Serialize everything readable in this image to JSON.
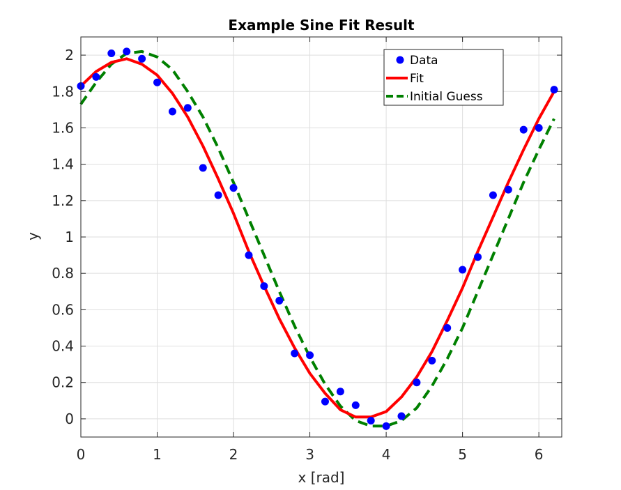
{
  "chart_data": {
    "type": "line",
    "title": "Example Sine Fit Result",
    "xlabel": "x [rad]",
    "ylabel": "y",
    "xlim": [
      0,
      6.3
    ],
    "ylim": [
      -0.1,
      2.1
    ],
    "xticks": [
      "0",
      "1",
      "2",
      "3",
      "4",
      "5",
      "6"
    ],
    "yticks": [
      "0",
      "0.2",
      "0.4",
      "0.6",
      "0.8",
      "1",
      "1.2",
      "1.4",
      "1.6",
      "1.8",
      "2"
    ],
    "grid": true,
    "legend_position": "top-right",
    "series": [
      {
        "name": "Data",
        "style": "scatter",
        "color": "#0000ff",
        "x": [
          0,
          0.2,
          0.4,
          0.6,
          0.8,
          1.0,
          1.2,
          1.4,
          1.6,
          1.8,
          2.0,
          2.2,
          2.4,
          2.6,
          2.8,
          3.0,
          3.2,
          3.4,
          3.6,
          3.8,
          4.0,
          4.2,
          4.4,
          4.6,
          4.8,
          5.0,
          5.2,
          5.4,
          5.6,
          5.8,
          6.0,
          6.2
        ],
        "y": [
          1.83,
          1.88,
          2.01,
          2.02,
          1.98,
          1.85,
          1.69,
          1.71,
          1.38,
          1.23,
          1.27,
          0.9,
          0.73,
          0.65,
          0.36,
          0.35,
          0.095,
          0.15,
          0.075,
          -0.01,
          -0.04,
          0.015,
          0.2,
          0.32,
          0.5,
          0.82,
          0.89,
          1.23,
          1.26,
          1.59,
          1.6,
          1.81
        ]
      },
      {
        "name": "Fit",
        "style": "solid",
        "color": "#ff0000",
        "x": [
          0,
          0.2,
          0.4,
          0.6,
          0.8,
          1.0,
          1.2,
          1.4,
          1.6,
          1.8,
          2.0,
          2.2,
          2.4,
          2.6,
          2.8,
          3.0,
          3.2,
          3.4,
          3.6,
          3.8,
          4.0,
          4.2,
          4.4,
          4.6,
          4.8,
          5.0,
          5.2,
          5.4,
          5.6,
          5.8,
          6.0,
          6.2
        ],
        "y": [
          1.83,
          1.91,
          1.96,
          1.98,
          1.95,
          1.89,
          1.79,
          1.66,
          1.5,
          1.32,
          1.13,
          0.92,
          0.73,
          0.55,
          0.39,
          0.25,
          0.14,
          0.05,
          0.01,
          0.01,
          0.04,
          0.12,
          0.23,
          0.37,
          0.54,
          0.72,
          0.92,
          1.11,
          1.3,
          1.48,
          1.65,
          1.8
        ]
      },
      {
        "name": "Initial Guess",
        "style": "dashed",
        "color": "#008000",
        "x": [
          0,
          0.2,
          0.4,
          0.6,
          0.8,
          1.0,
          1.2,
          1.4,
          1.6,
          1.8,
          2.0,
          2.2,
          2.4,
          2.6,
          2.8,
          3.0,
          3.2,
          3.4,
          3.6,
          3.8,
          4.0,
          4.2,
          4.4,
          4.6,
          4.8,
          5.0,
          5.2,
          5.4,
          5.6,
          5.8,
          6.0,
          6.2
        ],
        "y": [
          1.73,
          1.85,
          1.95,
          2.01,
          2.02,
          1.99,
          1.92,
          1.8,
          1.66,
          1.49,
          1.3,
          1.1,
          0.9,
          0.7,
          0.51,
          0.34,
          0.19,
          0.07,
          -0.01,
          -0.04,
          -0.04,
          -0.01,
          0.06,
          0.18,
          0.33,
          0.5,
          0.7,
          0.9,
          1.1,
          1.3,
          1.48,
          1.65
        ]
      }
    ]
  }
}
